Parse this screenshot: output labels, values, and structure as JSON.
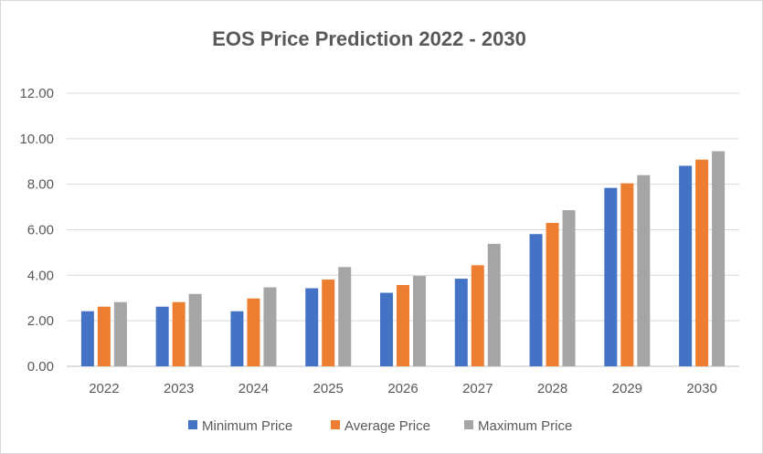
{
  "chart_data": {
    "type": "bar",
    "title": "EOS Price Prediction 2022 - 2030",
    "categories": [
      "2022",
      "2023",
      "2024",
      "2025",
      "2026",
      "2027",
      "2028",
      "2029",
      "2030"
    ],
    "series": [
      {
        "name": "Minimum Price",
        "color": "#4472c4",
        "values": [
          2.42,
          2.62,
          2.42,
          3.43,
          3.23,
          3.85,
          5.81,
          7.84,
          8.81
        ]
      },
      {
        "name": "Average Price",
        "color": "#ed7d31",
        "values": [
          2.62,
          2.82,
          2.98,
          3.81,
          3.57,
          4.44,
          6.3,
          8.04,
          9.08
        ]
      },
      {
        "name": "Maximum Price",
        "color": "#a5a5a5",
        "values": [
          2.82,
          3.18,
          3.47,
          4.36,
          3.97,
          5.38,
          6.86,
          8.4,
          9.45
        ]
      }
    ],
    "ylim": [
      0,
      12
    ],
    "yticks": [
      "0.00",
      "2.00",
      "4.00",
      "6.00",
      "8.00",
      "10.00",
      "12.00"
    ],
    "ytick_values": [
      0,
      2,
      4,
      6,
      8,
      10,
      12
    ],
    "grid": true,
    "legend_position": "bottom",
    "xlabel": "",
    "ylabel": ""
  }
}
